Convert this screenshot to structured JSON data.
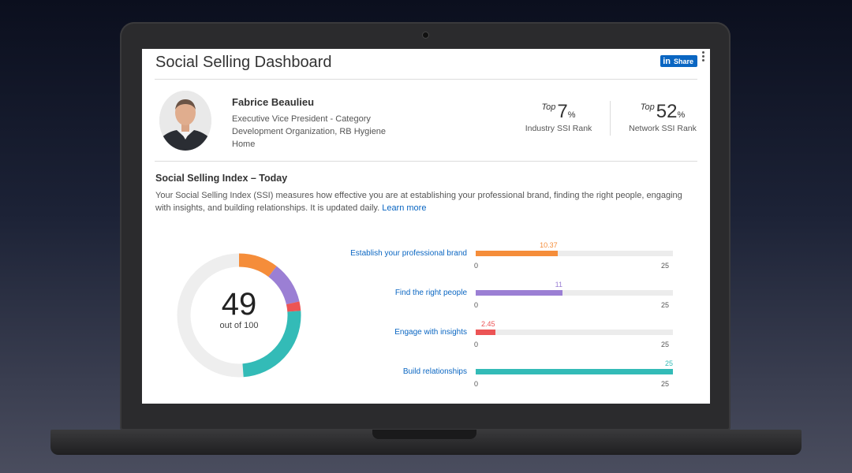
{
  "dashboard": {
    "title": "Social Selling Dashboard",
    "share_label": "Share",
    "brand_mark": "in"
  },
  "profile": {
    "name": "Fabrice Beaulieu",
    "role": "Executive Vice President - Category Development Organization, RB Hygiene Home"
  },
  "ranks": [
    {
      "prefix": "Top",
      "value": "7",
      "unit": "%",
      "caption": "Industry SSI Rank"
    },
    {
      "prefix": "Top",
      "value": "52",
      "unit": "%",
      "caption": "Network SSI Rank"
    }
  ],
  "ssi": {
    "title": "Social Selling Index – Today",
    "description": "Your Social Selling Index (SSI) measures how effective you are at establishing your professional brand, finding the right people, engaging with insights, and building relationships. It is updated daily.",
    "learn_more": "Learn more",
    "score": "49",
    "score_caption": "out of 100",
    "max": 100
  },
  "components": [
    {
      "label": "Establish your professional brand",
      "value": 10.37,
      "value_text": "10.37",
      "max": 25,
      "min_text": "0",
      "max_text": "25",
      "color": "#f58d3a"
    },
    {
      "label": "Find the right people",
      "value": 11,
      "value_text": "11",
      "max": 25,
      "min_text": "0",
      "max_text": "25",
      "color": "#9b7fd4"
    },
    {
      "label": "Engage with insights",
      "value": 2.45,
      "value_text": "2.45",
      "max": 25,
      "min_text": "0",
      "max_text": "25",
      "color": "#ec5455"
    },
    {
      "label": "Build relationships",
      "value": 25,
      "value_text": "25",
      "max": 25,
      "min_text": "0",
      "max_text": "25",
      "color": "#33bbb7"
    }
  ],
  "colors": {
    "accent": "#0a66c2",
    "donut_track": "#eeeeee"
  }
}
